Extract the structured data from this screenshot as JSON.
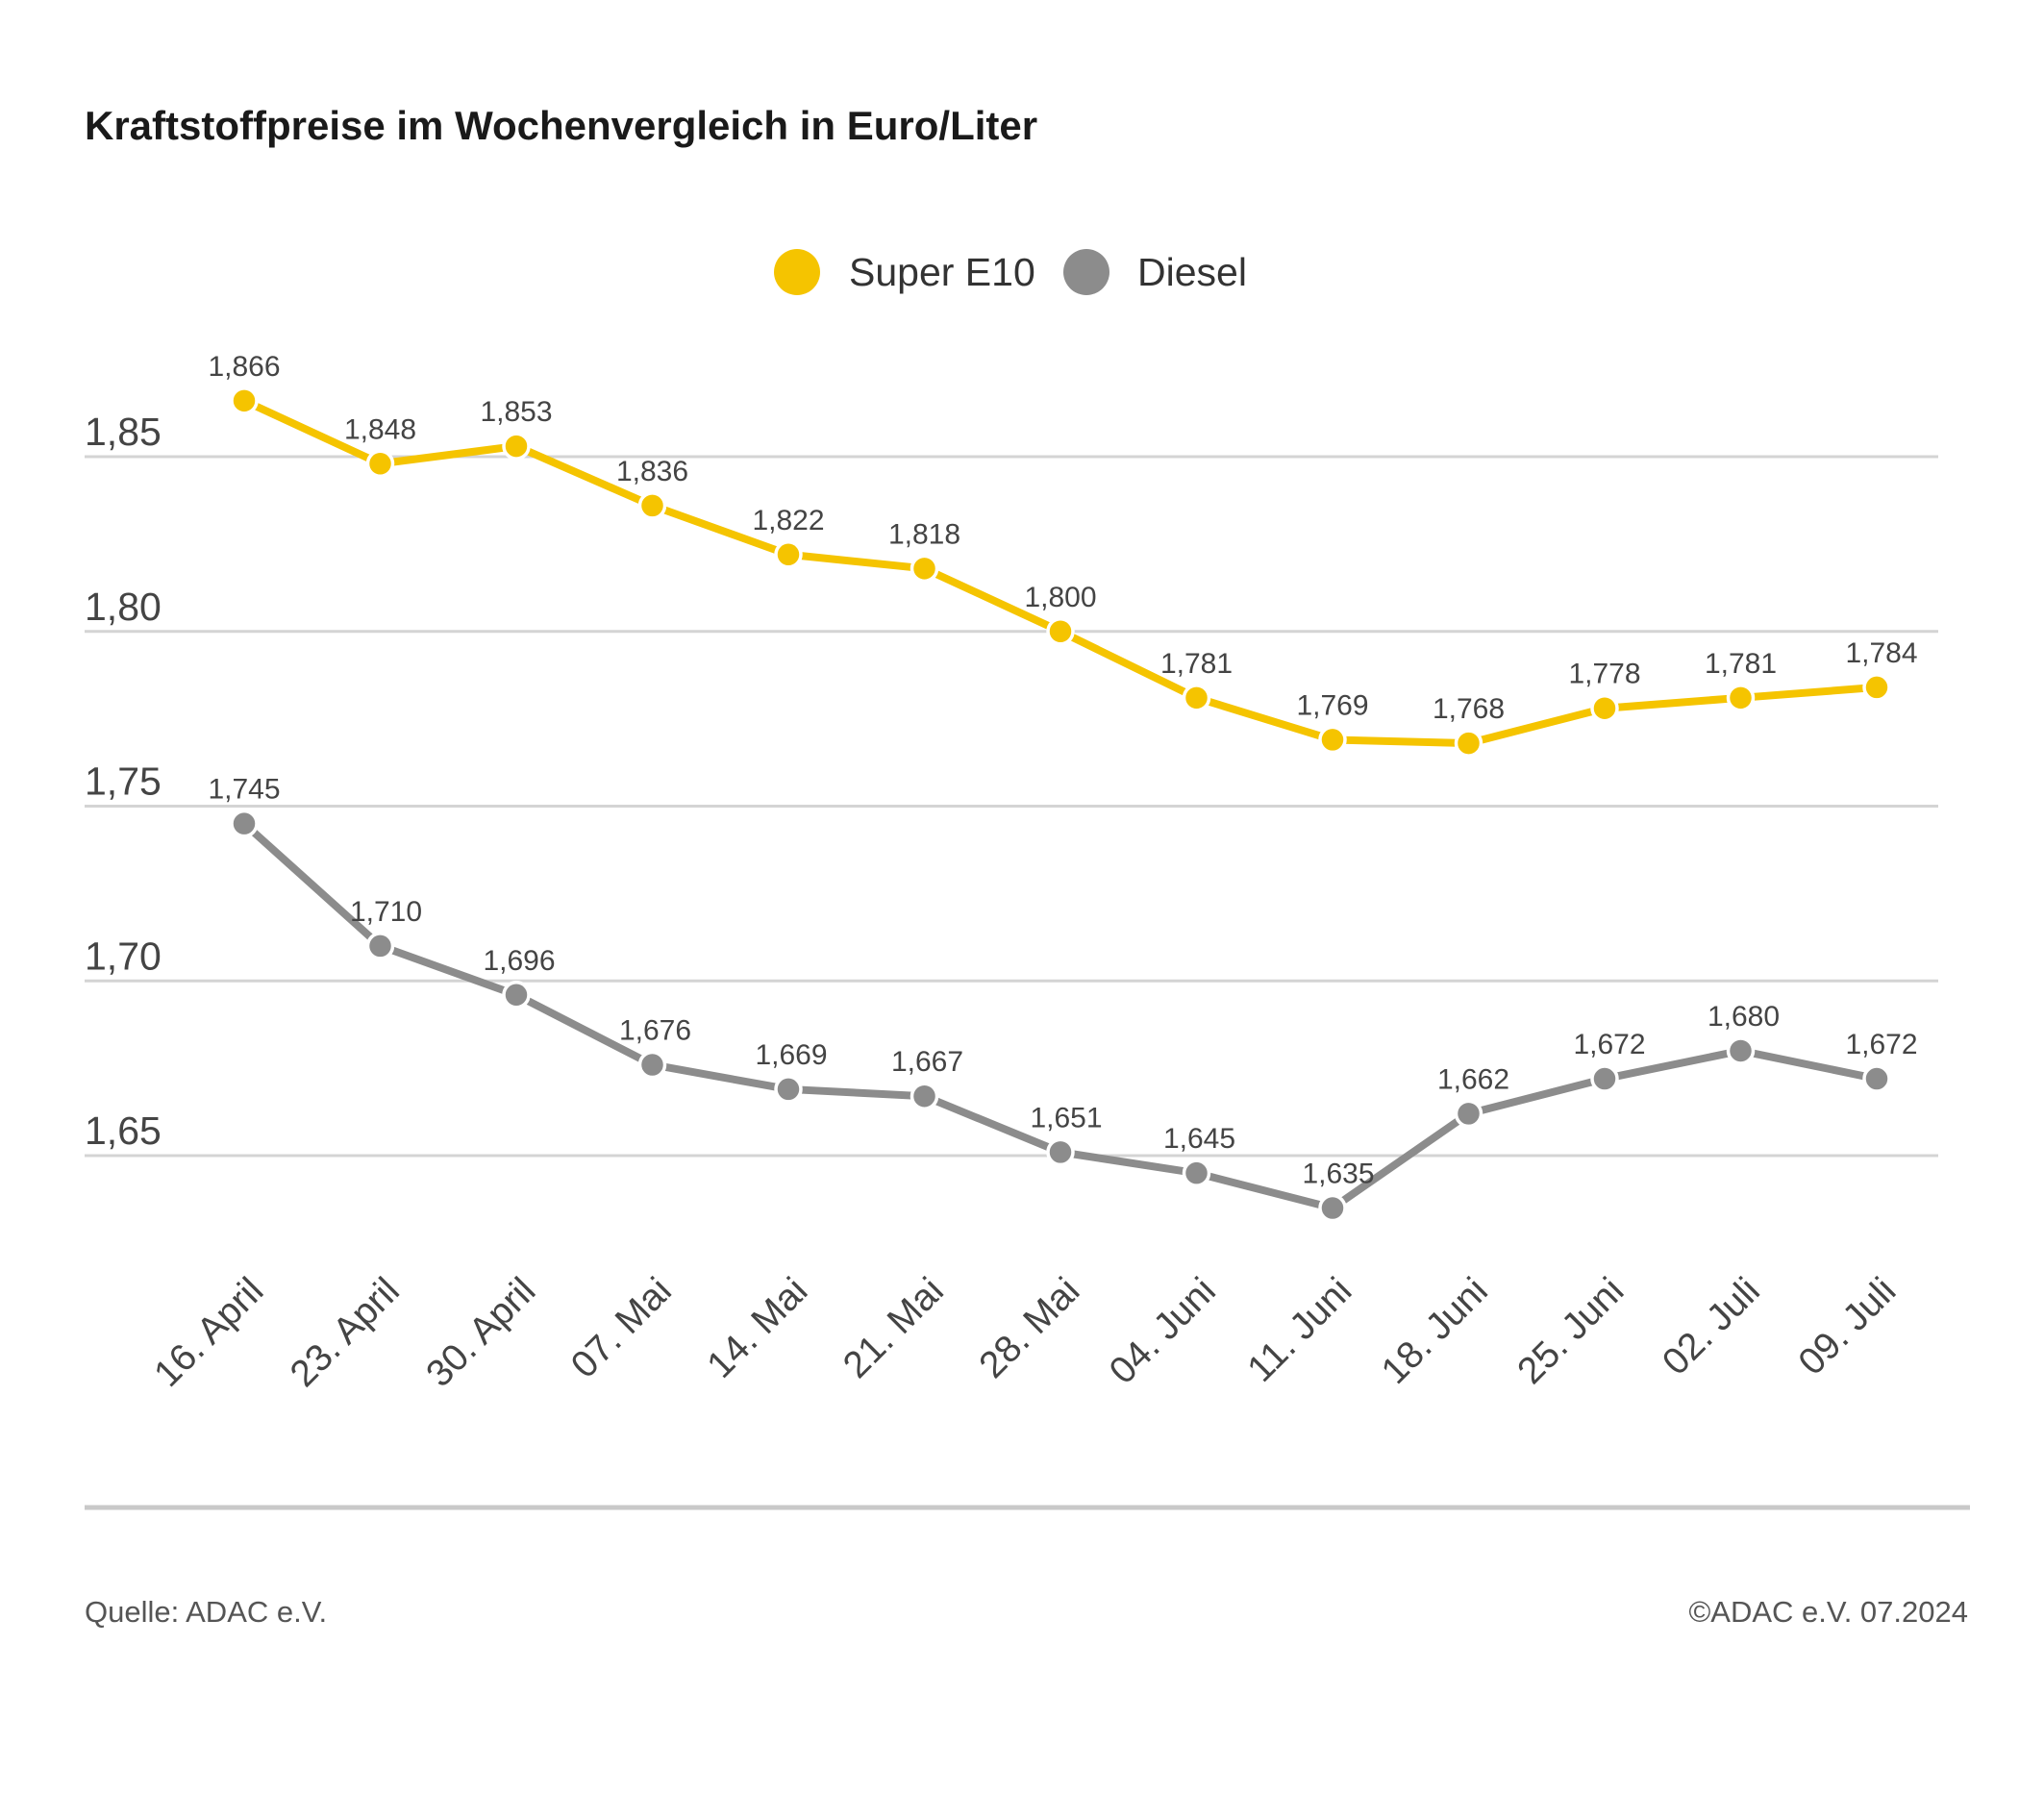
{
  "title": "Kraftstoffpreise im Wochenvergleich in Euro/Liter",
  "footer": {
    "source": "Quelle: ADAC e.V.",
    "copyright": "©ADAC e.V. 07.2024"
  },
  "colors": {
    "super_e10": "#f5c400",
    "diesel": "#8c8c8c",
    "grid": "#d4d4d4"
  },
  "chart_data": {
    "type": "line",
    "title": "Kraftstoffpreise im Wochenvergleich in Euro/Liter",
    "xlabel": "",
    "ylabel": "",
    "ylim": [
      1.6,
      1.88
    ],
    "yticks": [
      1.65,
      1.7,
      1.75,
      1.8,
      1.85
    ],
    "ytick_labels": [
      "1,65",
      "1,70",
      "1,75",
      "1,80",
      "1,85"
    ],
    "grid": true,
    "legend_position": "top-center",
    "categories": [
      "16. April",
      "23. April",
      "30. April",
      "07. Mai",
      "14. Mai",
      "21. Mai",
      "28. Mai",
      "04. Juni",
      "11. Juni",
      "18. Juni",
      "25. Juni",
      "02. Juli",
      "09. Juli"
    ],
    "series": [
      {
        "name": "Super E10",
        "color": "#f5c400",
        "values": [
          1.866,
          1.848,
          1.853,
          1.836,
          1.822,
          1.818,
          1.8,
          1.781,
          1.769,
          1.768,
          1.778,
          1.781,
          1.784
        ],
        "labels": [
          "1,866",
          "1,848",
          "1,853",
          "1,836",
          "1,822",
          "1,818",
          "1,800",
          "1,781",
          "1,769",
          "1,768",
          "1,778",
          "1,781",
          "1,784"
        ]
      },
      {
        "name": "Diesel",
        "color": "#8c8c8c",
        "values": [
          1.745,
          1.71,
          1.696,
          1.676,
          1.669,
          1.667,
          1.651,
          1.645,
          1.635,
          1.662,
          1.672,
          1.68,
          1.672
        ],
        "labels": [
          "1,745",
          "1,710",
          "1,696",
          "1,676",
          "1,669",
          "1,667",
          "1,651",
          "1,645",
          "1,635",
          "1,662",
          "1,672",
          "1,680",
          "1,672"
        ]
      }
    ]
  }
}
